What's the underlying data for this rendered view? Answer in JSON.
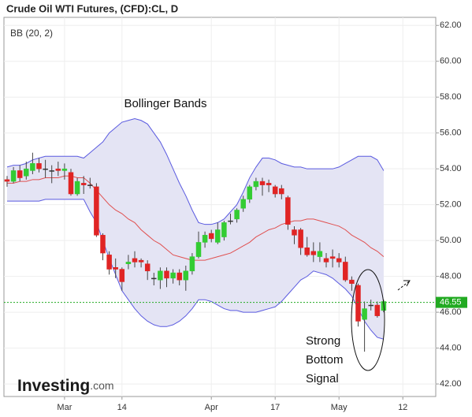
{
  "chart_data": {
    "type": "candlestick",
    "title": "Crude Oil WTI Futures, (CFD):CL, D",
    "indicator": "BB (20, 2)",
    "annotations": [
      "Bollinger Bands",
      "Strong",
      "Bottom",
      "Signal"
    ],
    "logo": {
      "name": "Investing",
      "suffix": ".com"
    },
    "categories": [
      null,
      null,
      null,
      null,
      null,
      null,
      null,
      null,
      null,
      "Mar",
      null,
      null,
      null,
      null,
      null,
      null,
      null,
      null,
      "14",
      null,
      null,
      null,
      null,
      null,
      null,
      null,
      null,
      null,
      null,
      null,
      null,
      null,
      "Apr",
      null,
      null,
      null,
      null,
      null,
      null,
      null,
      null,
      null,
      "17",
      null,
      null,
      null,
      null,
      null,
      null,
      null,
      null,
      null,
      "May",
      null,
      null,
      null,
      null,
      null,
      null,
      null,
      null,
      null,
      "12"
    ],
    "open": [
      53.4,
      53.3,
      53.9,
      53.6,
      53.9,
      54.3,
      54.0,
      53.9,
      54.0,
      53.9,
      53.8,
      52.6,
      53.2,
      53.1,
      53.0,
      50.3,
      49.2,
      48.5,
      48.4,
      48.7,
      49.0,
      48.9,
      48.7,
      47.9,
      47.8,
      48.3,
      47.9,
      48.2,
      47.8,
      48.3,
      49.1,
      49.9,
      50.4,
      49.9,
      50.2,
      51.1,
      51.2,
      51.8,
      52.3,
      53.0,
      53.3,
      53.2,
      53.0,
      52.9,
      52.4,
      50.6,
      50.6,
      49.6,
      49.4,
      49.1,
      49.0,
      49.1,
      49.0,
      48.8,
      47.8,
      47.5,
      45.6,
      46.4,
      46.4,
      46.1,
      null,
      null,
      null
    ],
    "high": [
      53.6,
      54.1,
      54.2,
      54.4,
      54.9,
      54.6,
      54.5,
      54.2,
      54.4,
      54.3,
      54.0,
      53.5,
      53.6,
      53.5,
      53.2,
      50.4,
      49.4,
      49.0,
      48.5,
      49.2,
      49.4,
      49.0,
      48.9,
      48.2,
      48.5,
      48.5,
      48.4,
      48.4,
      48.6,
      49.3,
      50.5,
      50.5,
      50.6,
      51.0,
      51.1,
      51.5,
      51.8,
      52.5,
      53.1,
      53.5,
      53.5,
      53.4,
      53.1,
      53.1,
      52.5,
      50.8,
      50.7,
      50.2,
      49.9,
      49.9,
      49.3,
      49.5,
      49.3,
      49.1,
      48.0,
      47.6,
      46.6,
      46.7,
      46.6,
      46.7,
      null,
      null,
      null
    ],
    "low": [
      53.0,
      53.2,
      53.3,
      53.4,
      53.7,
      53.8,
      53.5,
      53.2,
      53.6,
      53.4,
      52.5,
      52.5,
      52.6,
      52.9,
      50.2,
      48.9,
      48.1,
      47.9,
      47.2,
      48.4,
      48.5,
      48.5,
      47.8,
      47.5,
      47.3,
      47.4,
      47.6,
      47.5,
      47.2,
      48.1,
      49.0,
      49.6,
      49.9,
      49.8,
      50.0,
      50.9,
      51.0,
      51.6,
      52.1,
      52.8,
      52.5,
      52.7,
      52.4,
      52.3,
      50.6,
      49.8,
      49.2,
      49.1,
      48.8,
      48.8,
      48.5,
      48.5,
      48.5,
      47.7,
      47.2,
      45.2,
      43.8,
      46.1,
      45.7,
      46.0,
      null,
      null,
      null
    ],
    "close": [
      53.3,
      53.9,
      53.5,
      54.0,
      54.3,
      54.0,
      54.0,
      53.9,
      53.9,
      54.0,
      52.6,
      53.3,
      53.1,
      53.1,
      50.3,
      49.3,
      48.4,
      48.4,
      47.7,
      48.8,
      48.8,
      48.8,
      48.3,
      47.9,
      48.3,
      47.9,
      48.2,
      47.8,
      48.3,
      49.1,
      49.9,
      50.3,
      50.1,
      50.6,
      51.0,
      51.1,
      51.7,
      52.3,
      53.0,
      53.3,
      53.1,
      53.1,
      52.6,
      52.6,
      50.9,
      50.3,
      49.6,
      49.2,
      49.2,
      49.4,
      48.8,
      49.0,
      48.8,
      47.8,
      47.6,
      45.5,
      46.2,
      46.4,
      45.8,
      46.6,
      null,
      null,
      null
    ],
    "upper": [
      54.1,
      54.2,
      54.2,
      54.3,
      54.5,
      54.6,
      54.7,
      54.7,
      54.7,
      54.7,
      54.7,
      54.7,
      54.6,
      54.9,
      55.2,
      55.5,
      56.0,
      56.3,
      56.6,
      56.7,
      56.8,
      56.7,
      56.5,
      56.0,
      55.5,
      54.8,
      54.0,
      53.2,
      52.5,
      51.7,
      51.0,
      50.9,
      50.9,
      51.0,
      51.2,
      51.6,
      52.0,
      52.7,
      53.5,
      54.1,
      54.6,
      54.6,
      54.5,
      54.3,
      54.2,
      54.1,
      54.1,
      54.0,
      54.0,
      54.0,
      54.0,
      54.0,
      54.1,
      54.3,
      54.5,
      54.7,
      54.7,
      54.7,
      54.5,
      53.9,
      null,
      null,
      null
    ],
    "middle": [
      53.2,
      53.2,
      53.3,
      53.3,
      53.4,
      53.4,
      53.5,
      53.5,
      53.5,
      53.6,
      53.6,
      53.5,
      53.5,
      53.2,
      52.8,
      52.4,
      52.0,
      51.7,
      51.5,
      51.2,
      51.0,
      50.6,
      50.3,
      50.0,
      49.8,
      49.5,
      49.2,
      49.1,
      49.0,
      48.9,
      48.9,
      48.9,
      49.0,
      49.1,
      49.2,
      49.3,
      49.5,
      49.7,
      49.9,
      50.2,
      50.4,
      50.6,
      50.7,
      50.9,
      51.0,
      51.1,
      51.1,
      51.2,
      51.2,
      51.1,
      51.0,
      50.9,
      50.8,
      50.6,
      50.3,
      50.1,
      49.9,
      49.6,
      49.4,
      49.1,
      null,
      null,
      null
    ],
    "lower": [
      52.2,
      52.2,
      52.2,
      52.2,
      52.2,
      52.2,
      52.3,
      52.3,
      52.3,
      52.3,
      52.3,
      52.3,
      52.3,
      51.6,
      51.0,
      50.0,
      49.0,
      48.1,
      47.2,
      46.7,
      46.2,
      45.8,
      45.5,
      45.3,
      45.2,
      45.2,
      45.3,
      45.5,
      45.8,
      46.2,
      46.7,
      46.7,
      46.6,
      46.4,
      46.2,
      46.1,
      46.1,
      46.0,
      46.0,
      46.0,
      46.1,
      46.2,
      46.3,
      46.6,
      47.0,
      47.4,
      47.8,
      48.0,
      48.3,
      48.2,
      48.1,
      47.9,
      47.6,
      47.3,
      46.9,
      46.2,
      45.5,
      45.0,
      44.6,
      44.5,
      null,
      null,
      null
    ],
    "last_price": 46.55,
    "up_color": "#33cc33",
    "down_color": "#e02424",
    "band_color": "#5a5ae0",
    "middle_color": "#e05050",
    "fill_color": "#e4e4f4",
    "price_color": "#22aa22",
    "ylim": [
      41.3,
      62.45
    ],
    "yticks": [
      {
        "value": 42,
        "label": "42.00"
      },
      {
        "value": 44,
        "label": "44.00"
      },
      {
        "value": 46,
        "label": "46.00"
      },
      {
        "value": 48,
        "label": "48.00"
      },
      {
        "value": 50,
        "label": "50.00"
      },
      {
        "value": 52,
        "label": "52.00"
      },
      {
        "value": 54,
        "label": "54.00"
      },
      {
        "value": 56,
        "label": "56.00"
      },
      {
        "value": 58,
        "label": "58.00"
      },
      {
        "value": 60,
        "label": "60.00"
      },
      {
        "value": 62,
        "label": "62.00"
      }
    ],
    "grid": true
  }
}
